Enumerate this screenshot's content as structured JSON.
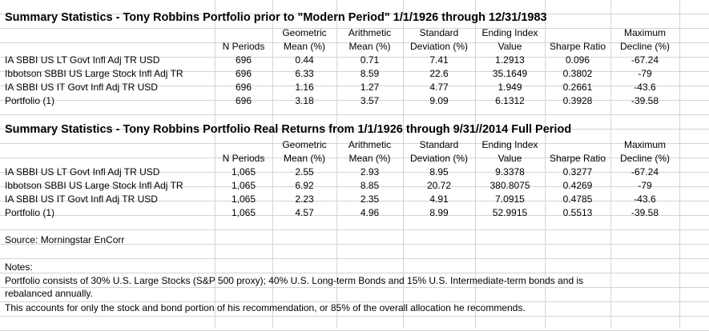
{
  "table1": {
    "title": "Summary Statistics - Tony Robbins Portfolio prior to \"Modern Period\"   1/1/1926 through 12/31/1983",
    "headers": {
      "nperiods": [
        "",
        "N Periods"
      ],
      "geo": [
        "Geometric",
        "Mean (%)"
      ],
      "arith": [
        "Arithmetic",
        "Mean (%)"
      ],
      "std": [
        "Standard",
        "Deviation (%)"
      ],
      "ending": [
        "Ending Index",
        "Value"
      ],
      "sharpe": [
        "",
        "Sharpe Ratio"
      ],
      "max": [
        "Maximum",
        "Decline (%)"
      ]
    },
    "rows": [
      {
        "label": "IA SBBI US LT Govt Infl Adj TR USD",
        "n": "696",
        "geo": "0.44",
        "arith": "0.71",
        "std": "7.41",
        "ending": "1.2913",
        "sharpe": "0.096",
        "max": "-67.24"
      },
      {
        "label": "Ibbotson SBBI US Large Stock Infl Adj TR",
        "n": "696",
        "geo": "6.33",
        "arith": "8.59",
        "std": "22.6",
        "ending": "35.1649",
        "sharpe": "0.3802",
        "max": "-79"
      },
      {
        "label": "IA SBBI US IT Govt Infl Adj TR USD",
        "n": "696",
        "geo": "1.16",
        "arith": "1.27",
        "std": "4.77",
        "ending": "1.949",
        "sharpe": "0.2661",
        "max": "-43.6"
      },
      {
        "label": "Portfolio (1)",
        "n": "696",
        "geo": "3.18",
        "arith": "3.57",
        "std": "9.09",
        "ending": "6.1312",
        "sharpe": "0.3928",
        "max": "-39.58"
      }
    ]
  },
  "table2": {
    "title": "Summary Statistics - Tony Robbins Portfolio Real Returns from   1/1/1926 through 9/31//2014 Full Period",
    "headers": {
      "nperiods": [
        "",
        "N Periods"
      ],
      "geo": [
        "Geometric",
        "Mean (%)"
      ],
      "arith": [
        "Arithmetic",
        "Mean (%)"
      ],
      "std": [
        "Standard",
        "Deviation (%)"
      ],
      "ending": [
        "Ending Index",
        "Value"
      ],
      "sharpe": [
        "",
        "Sharpe Ratio"
      ],
      "max": [
        "Maximum",
        "Decline (%)"
      ]
    },
    "rows": [
      {
        "label": "IA SBBI US LT Govt Infl Adj TR USD",
        "n": "1,065",
        "geo": "2.55",
        "arith": "2.93",
        "std": "8.95",
        "ending": "9.3378",
        "sharpe": "0.3277",
        "max": "-67.24"
      },
      {
        "label": "Ibbotson SBBI US Large Stock Infl Adj TR",
        "n": "1,065",
        "geo": "6.92",
        "arith": "8.85",
        "std": "20.72",
        "ending": "380.8075",
        "sharpe": "0.4269",
        "max": "-79"
      },
      {
        "label": "IA SBBI US IT Govt Infl Adj TR USD",
        "n": "1,065",
        "geo": "2.23",
        "arith": "2.35",
        "std": "4.91",
        "ending": "7.0915",
        "sharpe": "0.4785",
        "max": "-43.6"
      },
      {
        "label": "Portfolio (1)",
        "n": "1,065",
        "geo": "4.57",
        "arith": "4.96",
        "std": "8.99",
        "ending": "52.9915",
        "sharpe": "0.5513",
        "max": "-39.58"
      }
    ]
  },
  "source": "Source: Morningstar EnCorr",
  "notes": {
    "heading": "Notes:",
    "line1": "Portfolio consists of 30% U.S. Large Stocks (S&P 500 proxy); 40% U.S. Long-term Bonds and 15% U.S. Intermediate-term bonds and is",
    "line2": "rebalanced annually.",
    "line3": "This accounts for only the stock and bond portion of his recommendation, or 85% of the overall allocation he recommends."
  }
}
